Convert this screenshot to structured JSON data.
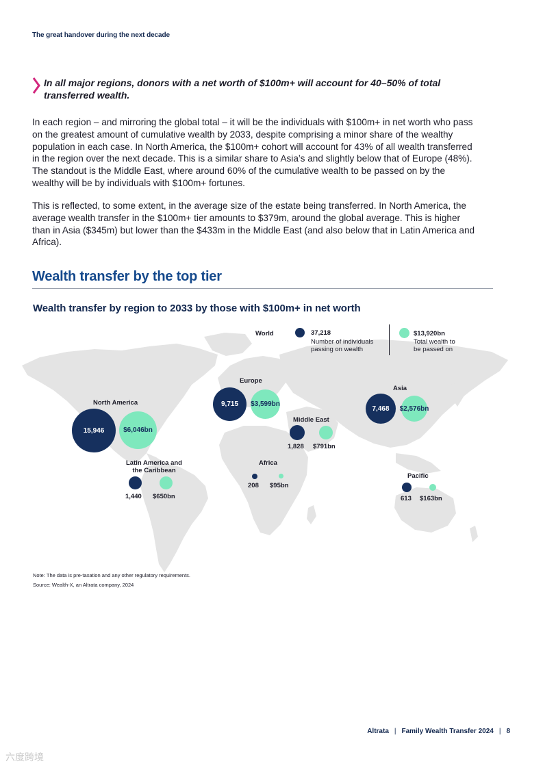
{
  "header": {
    "section_label": "The great handover during the next decade"
  },
  "callout": {
    "text": "In all major regions, donors with a net worth of $100m+ will account for 40–50% of total transferred wealth.",
    "icon": "chevron-right-icon",
    "accent_color": "#d2267d"
  },
  "body": {
    "paragraph_1": "In each region – and mirroring the global total – it will be the individuals with $100m+ in net worth who pass on the greatest amount of cumulative wealth by 2033, despite comprising a minor share of the wealthy population in each case. In North America, the $100m+ cohort will account for 43% of all wealth transferred in the region over the next decade. This is a similar share to Asia’s and slightly below that of Europe (48%). The standout is the Middle East, where around 60% of the cumulative wealth to be passed on by the wealthy will be by individuals with $100m+ fortunes.",
    "paragraph_2": "This is reflected, to some extent, in the average size of the estate being transferred. In North America, the average wealth transfer in the $100m+ tier amounts to $379m, around the global average. This is higher than in Asia ($345m) but lower than the $433m in the Middle East (and also below that in Latin America and Africa)."
  },
  "section": {
    "heading": "Wealth transfer by the top tier"
  },
  "chart": {
    "title": "Wealth transfer by region to 2033 by those with $100m+ in net worth",
    "legend": {
      "world_label": "World",
      "individuals_value": "37,218",
      "individuals_desc_line1": "Number of individuals",
      "individuals_desc_line2": "passing on wealth",
      "wealth_value": "$13,920bn",
      "wealth_desc_line1": "Total wealth to",
      "wealth_desc_line2": "be passed on"
    },
    "regions": {
      "north_america": {
        "name": "North America",
        "individuals": "15,946",
        "wealth": "$6,046bn"
      },
      "latin_america": {
        "name_line1": "Latin America and",
        "name_line2": "the Caribbean",
        "individuals": "1,440",
        "wealth": "$650bn"
      },
      "europe": {
        "name": "Europe",
        "individuals": "9,715",
        "wealth": "$3,599bn"
      },
      "middle_east": {
        "name": "Middle East",
        "individuals": "1,828",
        "wealth": "$791bn"
      },
      "africa": {
        "name": "Africa",
        "individuals": "208",
        "wealth": "$95bn"
      },
      "asia": {
        "name": "Asia",
        "individuals": "7,468",
        "wealth": "$2,576bn"
      },
      "pacific": {
        "name": "Pacific",
        "individuals": "613",
        "wealth": "$163bn"
      }
    },
    "note": "Note: The data is pre-taxation and any other regulatory requirements.",
    "source": "Source: Wealth-X, an Altrata company, 2024"
  },
  "chart_data": {
    "type": "bubble-map",
    "title": "Wealth transfer by region to 2033 by those with $100m+ in net worth",
    "series": [
      {
        "name": "Number of individuals passing on wealth",
        "color": "#16305e"
      },
      {
        "name": "Total wealth to be passed on",
        "unit": "$bn",
        "color": "#7ee8bd"
      }
    ],
    "world": {
      "individuals": 37218,
      "wealth_bn": 13920
    },
    "regions": [
      {
        "region": "North America",
        "individuals": 15946,
        "wealth_bn": 6046
      },
      {
        "region": "Latin America and the Caribbean",
        "individuals": 1440,
        "wealth_bn": 650
      },
      {
        "region": "Europe",
        "individuals": 9715,
        "wealth_bn": 3599
      },
      {
        "region": "Middle East",
        "individuals": 1828,
        "wealth_bn": 791
      },
      {
        "region": "Africa",
        "individuals": 208,
        "wealth_bn": 95
      },
      {
        "region": "Asia",
        "individuals": 7468,
        "wealth_bn": 2576
      },
      {
        "region": "Pacific",
        "individuals": 613,
        "wealth_bn": 163
      }
    ]
  },
  "footer": {
    "brand": "Altrata",
    "separator": "|",
    "report": "Family Wealth Transfer 2024",
    "page": "8"
  },
  "watermark": "六度跨境"
}
